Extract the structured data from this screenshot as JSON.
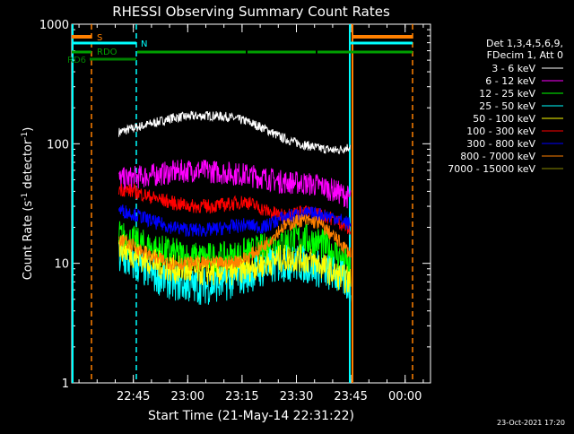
{
  "chart_data": {
    "type": "line",
    "title": "RHESSI Observing Summary Count Rates",
    "xlabel": "Start Time (21-May-14 22:31:22)",
    "ylabel_main": "Count Rate (s",
    "ylabel_sup1": "-1",
    "ylabel_mid": " detector",
    "ylabel_sup2": "-1",
    "ylabel_end": ")",
    "yscale": "log",
    "ylim": [
      1,
      1000
    ],
    "xlim_minutes": [
      -3,
      96
    ],
    "x_tick_labels": [
      "22:45",
      "23:00",
      "23:15",
      "23:30",
      "23:45",
      "00:00"
    ],
    "x_tick_minutes": [
      14,
      29,
      44,
      59,
      74,
      89
    ],
    "y_tick_labels": [
      "1",
      "10",
      "100",
      "1000"
    ],
    "y_tick_values": [
      1,
      10,
      100,
      1000
    ],
    "legend_header": [
      "Det 1,3,4,5,6,9,",
      "FDecim 1, Att 0"
    ],
    "legend_position": "right",
    "series": [
      {
        "name": "3 - 6 keV",
        "color": "#ffffff",
        "x": [
          10,
          14,
          20,
          25,
          30,
          35,
          40,
          45,
          50,
          55,
          60,
          65,
          70,
          74
        ],
        "y": [
          125,
          135,
          150,
          165,
          170,
          172,
          168,
          155,
          135,
          112,
          100,
          92,
          88,
          95
        ]
      },
      {
        "name": "6 - 12 keV",
        "color": "#ff00ff",
        "x": [
          10,
          14,
          20,
          25,
          30,
          35,
          40,
          45,
          50,
          55,
          60,
          65,
          70,
          74
        ],
        "y": [
          50,
          52,
          55,
          58,
          60,
          59,
          57,
          55,
          52,
          48,
          47,
          45,
          40,
          35
        ]
      },
      {
        "name": "12 - 25 keV",
        "color": "#00ff00",
        "x": [
          10,
          14,
          20,
          25,
          30,
          35,
          40,
          45,
          50,
          55,
          60,
          65,
          70,
          74
        ],
        "y": [
          17,
          15,
          13,
          12,
          11,
          11,
          11,
          12,
          13,
          15,
          16,
          15,
          12,
          9
        ]
      },
      {
        "name": "25 - 50 keV",
        "color": "#00ffff",
        "x": [
          10,
          14,
          20,
          25,
          30,
          35,
          40,
          45,
          50,
          55,
          60,
          65,
          70,
          74
        ],
        "y": [
          11,
          10,
          8,
          7,
          6.5,
          6.5,
          7,
          8,
          9,
          10,
          10,
          9,
          8,
          6.5
        ]
      },
      {
        "name": "50 - 100 keV",
        "color": "#ffff00",
        "x": [
          10,
          14,
          20,
          25,
          30,
          35,
          40,
          45,
          50,
          55,
          60,
          65,
          70,
          74
        ],
        "y": [
          14,
          12,
          10,
          9,
          8.5,
          8.5,
          8.5,
          9,
          10,
          11,
          11,
          10,
          8,
          7
        ]
      },
      {
        "name": "100 - 300 keV",
        "color": "#ff0000",
        "x": [
          10,
          14,
          20,
          25,
          30,
          35,
          40,
          45,
          50,
          55,
          60,
          65,
          70,
          74
        ],
        "y": [
          42,
          40,
          35,
          32,
          30,
          30,
          31,
          33,
          28,
          25,
          27,
          26,
          23,
          19
        ]
      },
      {
        "name": "300 - 800 keV",
        "color": "#0000ff",
        "x": [
          10,
          14,
          20,
          25,
          30,
          35,
          40,
          45,
          50,
          55,
          60,
          65,
          70,
          74
        ],
        "y": [
          28,
          26,
          22,
          20,
          19,
          19,
          20,
          21,
          20,
          24,
          26,
          26,
          24,
          21
        ]
      },
      {
        "name": "800 - 7000 keV",
        "color": "#ff8000",
        "x": [
          10,
          14,
          20,
          25,
          30,
          35,
          40,
          45,
          50,
          55,
          60,
          65,
          70,
          74
        ],
        "y": [
          16,
          14,
          11,
          10,
          10,
          10,
          10,
          11,
          14,
          20,
          23,
          22,
          16,
          12
        ]
      },
      {
        "name": "7000 - 15000 keV",
        "color": "#8b8b00",
        "x": [],
        "y": []
      }
    ],
    "flag_labels": {
      "s": "S",
      "n": "N",
      "rdo": "RDO",
      "rd6": "RD6"
    },
    "flag_colors": {
      "s": "#ff8000",
      "n": "#00ffff",
      "rdo": "#00a000",
      "rd6": "#008000"
    },
    "footer_date": "23-Oct-2021 17:20"
  }
}
